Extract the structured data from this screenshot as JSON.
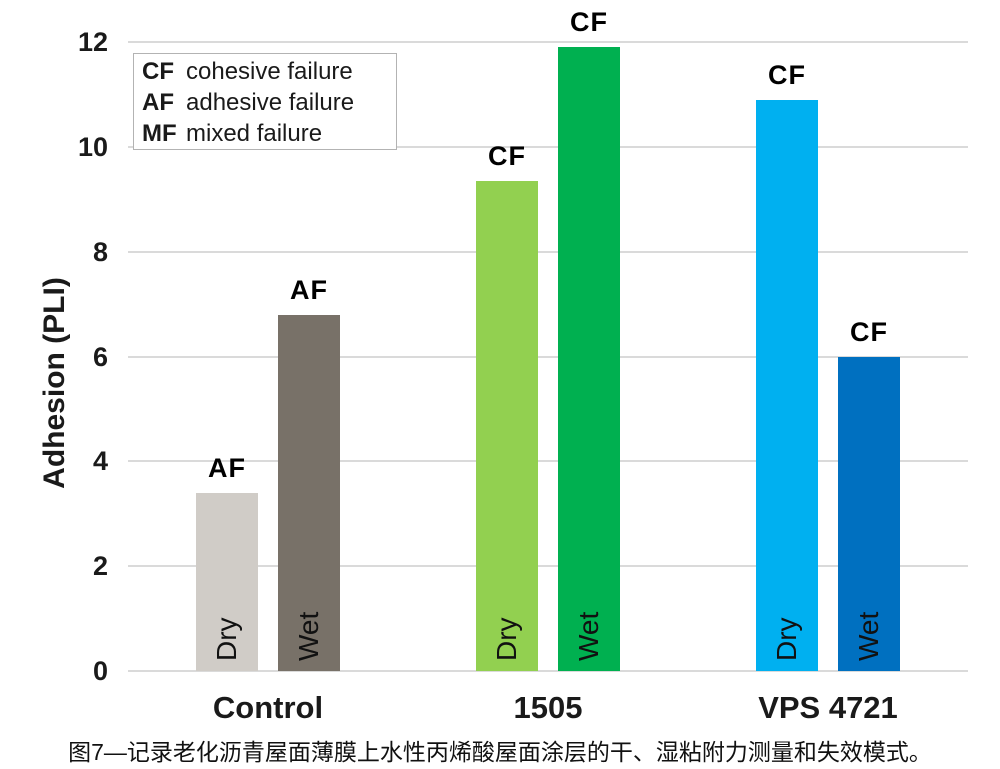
{
  "caption": "图7—记录老化沥青屋面薄膜上水性丙烯酸屋面涂层的干、湿粘附力测量和失效模式。",
  "chart_data": {
    "type": "bar",
    "title": "",
    "xlabel": "",
    "ylabel": "Adhesion (PLI)",
    "ylim": [
      0,
      12
    ],
    "yticks": [
      0,
      2,
      4,
      6,
      8,
      10,
      12
    ],
    "grid": "horizontal",
    "legend_position": "top-left",
    "legend": [
      {
        "abbr": "CF",
        "label": "cohesive failure"
      },
      {
        "abbr": "AF",
        "label": "adhesive failure"
      },
      {
        "abbr": "MF",
        "label": "mixed failure"
      }
    ],
    "groups": [
      {
        "label": "Control",
        "bars": [
          {
            "condition": "Dry",
            "value": 3.4,
            "failure_mode": "AF",
            "color": "#d0ccc7"
          },
          {
            "condition": "Wet",
            "value": 6.8,
            "failure_mode": "AF",
            "color": "#787168"
          }
        ]
      },
      {
        "label": "1505",
        "bars": [
          {
            "condition": "Dry",
            "value": 9.35,
            "failure_mode": "CF",
            "color": "#92d050"
          },
          {
            "condition": "Wet",
            "value": 11.9,
            "failure_mode": "CF",
            "color": "#00b050"
          }
        ]
      },
      {
        "label": "VPS 4721",
        "bars": [
          {
            "condition": "Dry",
            "value": 10.9,
            "failure_mode": "CF",
            "color": "#00b0f0"
          },
          {
            "condition": "Wet",
            "value": 6.0,
            "failure_mode": "CF",
            "color": "#0070c0"
          }
        ]
      }
    ]
  }
}
